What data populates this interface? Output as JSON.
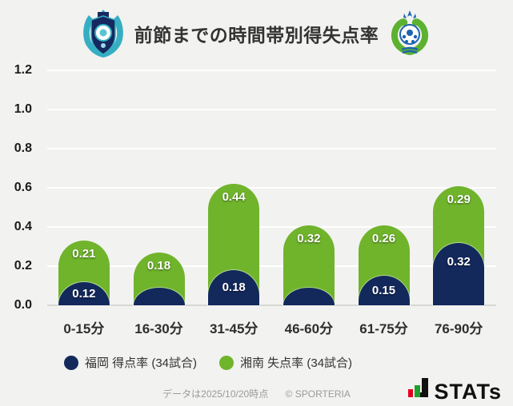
{
  "header": {
    "title": "前節までの時間帯別得失点率",
    "left_logo": "avispa-fukuoka-crest",
    "right_logo": "shonan-bellmare-crest"
  },
  "chart_data": {
    "type": "bar",
    "stacked": true,
    "title": "前節までの時間帯別得失点率",
    "categories": [
      "0-15分",
      "16-30分",
      "31-45分",
      "46-60分",
      "61-75分",
      "76-90分"
    ],
    "series": [
      {
        "name": "福岡 得点率 (34試合)",
        "color": "#13295c",
        "values": [
          0.12,
          0.09,
          0.18,
          0.09,
          0.15,
          0.32
        ],
        "labels": [
          "0.12",
          null,
          "0.18",
          null,
          "0.15",
          "0.32"
        ]
      },
      {
        "name": "湘南 失点率 (34試合)",
        "color": "#70b42c",
        "values": [
          0.21,
          0.18,
          0.44,
          0.32,
          0.26,
          0.29
        ],
        "labels": [
          "0.21",
          "0.18",
          "0.44",
          "0.32",
          "0.26",
          "0.29"
        ]
      }
    ],
    "ylim": [
      0,
      1.2
    ],
    "yticks": [
      "0.0",
      "0.2",
      "0.4",
      "0.6",
      "0.8",
      "1.0",
      "1.2"
    ],
    "grid": true,
    "gridline_color": "#ffffff",
    "axis_color": "#d7d7d4",
    "legend_position": "bottom"
  },
  "footer": {
    "data_note": "データは2025/10/20時点",
    "copyright": "© SPORTERIA",
    "brand": "STATs",
    "brand_colors": {
      "red": "#e6001f",
      "green": "#1fa12e",
      "black": "#111111"
    }
  }
}
